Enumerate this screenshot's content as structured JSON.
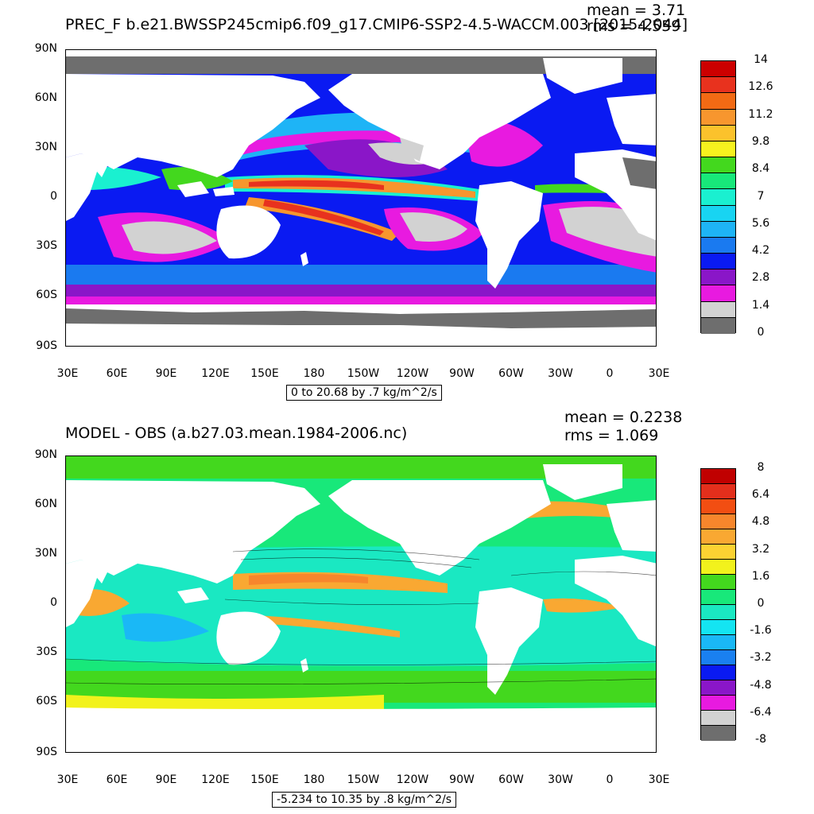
{
  "panel1": {
    "title": "PREC_F b.e21.BWSSP245cmip6.f09_g17.CMIP6-SSP2-4.5-WACCM.003 [2015-2044]",
    "mean": "mean = 3.71",
    "rms": "rms = 4.559",
    "info": "0 to 20.68 by .7 kg/m^2/s",
    "colorbar_labels": [
      "14",
      "12.6",
      "11.2",
      "9.8",
      "8.4",
      "7",
      "5.6",
      "4.2",
      "2.8",
      "1.4",
      "0"
    ],
    "colors": [
      "#cc0000",
      "#e8321e",
      "#f26a14",
      "#f7962e",
      "#fbc22c",
      "#f7f21e",
      "#43d81e",
      "#18e87a",
      "#1af0d0",
      "#18d4f2",
      "#1eb4f6",
      "#1a7af0",
      "#0a1af2",
      "#8a16c8",
      "#e81ae0",
      "#d2d2d2",
      "#6e6e6e"
    ]
  },
  "panel2": {
    "title": "MODEL - OBS (a.b27.03.mean.1984-2006.nc)",
    "mean": "mean = 0.2238",
    "rms": "rms = 1.069",
    "info": "-5.234 to 10.35 by .8 kg/m^2/s",
    "colorbar_labels": [
      "8",
      "6.4",
      "4.8",
      "3.2",
      "1.6",
      "0",
      "-1.6",
      "-3.2",
      "-4.8",
      "-6.4",
      "-8"
    ],
    "colors": [
      "#c00000",
      "#e32f1c",
      "#f24e12",
      "#f7862c",
      "#f9a832",
      "#fcd232",
      "#f2f21c",
      "#43d81e",
      "#18e87a",
      "#1ae8c2",
      "#14e4f2",
      "#1ab8f6",
      "#1a80f0",
      "#0a1af2",
      "#8a16c8",
      "#e81ae0",
      "#d2d2d2",
      "#6e6e6e"
    ]
  },
  "lat_labels": [
    "90N",
    "60N",
    "30N",
    "0",
    "30S",
    "60S",
    "90S"
  ],
  "lon_labels": [
    "30E",
    "60E",
    "90E",
    "120E",
    "150E",
    "180",
    "150W",
    "120W",
    "90W",
    "60W",
    "30W",
    "0",
    "30E"
  ]
}
